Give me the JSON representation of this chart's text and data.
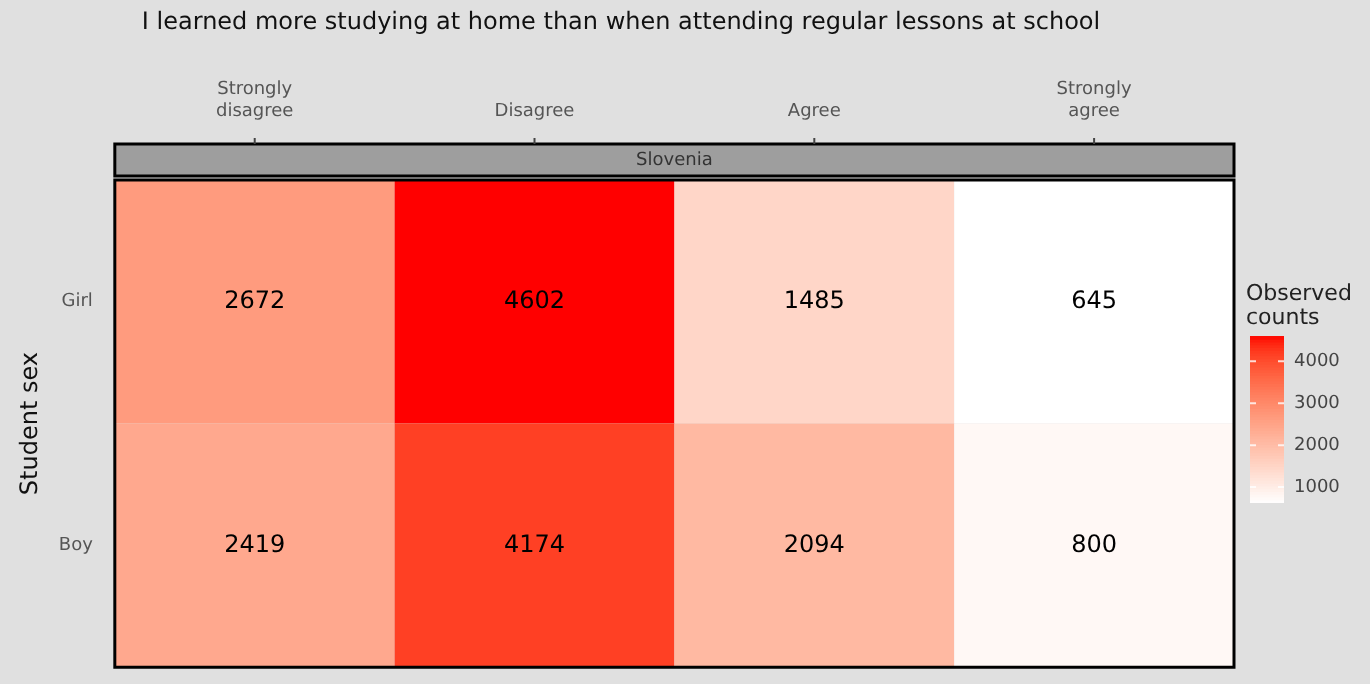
{
  "chart_data": {
    "type": "heatmap",
    "title": "I learned more studying at home than when attending regular lessons at school",
    "subtitle": "Slovenia",
    "ylabel": "Student sex",
    "clabel": "Observed counts",
    "categories": [
      "Strongly disagree",
      "Disagree",
      "Agree",
      "Strongly agree"
    ],
    "y_categories": [
      "Girl",
      "Boy"
    ],
    "cells": [
      [
        2672,
        4602,
        1485,
        645
      ],
      [
        2419,
        4174,
        2094,
        800
      ]
    ],
    "clim": [
      645,
      4602
    ],
    "cticks": [
      1000,
      2000,
      3000,
      4000
    ],
    "data_labels": true
  }
}
